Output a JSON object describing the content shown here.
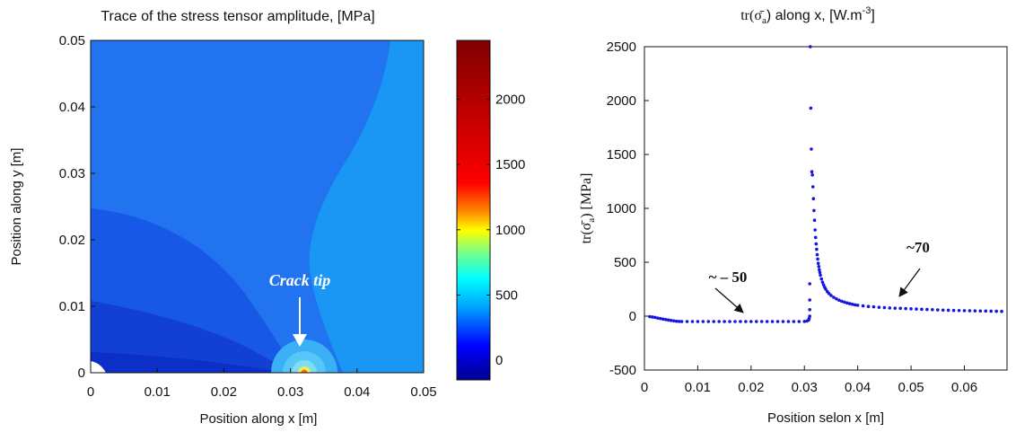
{
  "chart_data": [
    {
      "type": "heatmap",
      "title": "Trace of the stress tensor amplitude, [MPa]",
      "xlabel": "Position along x [m]",
      "ylabel": "Position along y [m]",
      "xlim": [
        0,
        0.05
      ],
      "ylim": [
        0,
        0.05
      ],
      "xticks": [
        "0",
        "0.01",
        "0.02",
        "0.03",
        "0.04",
        "0.05"
      ],
      "yticks": [
        "0",
        "0.01",
        "0.02",
        "0.03",
        "0.04",
        "0.05"
      ],
      "colorbar": {
        "range": [
          -150,
          2450
        ],
        "ticks": [
          "0",
          "500",
          "1000",
          "1500",
          "2000"
        ]
      },
      "annotation": "Crack tip",
      "crack_tip": [
        0.032,
        0.0005
      ]
    },
    {
      "type": "scatter",
      "title": "tr(σ̄a) along x, [W.m-3]",
      "xlabel": "Position selon x [m]",
      "ylabel": "tr(σ̄a) [MPa]",
      "xlim": [
        0,
        0.068
      ],
      "ylim": [
        -500,
        2500
      ],
      "xticks": [
        "0",
        "0.01",
        "0.02",
        "0.03",
        "0.04",
        "0.05",
        "0.06"
      ],
      "yticks": [
        "-500",
        "0",
        "500",
        "1000",
        "1500",
        "2000",
        "2500"
      ],
      "annotations": [
        {
          "text": "~ – 50",
          "target": [
            0.019,
            -50
          ]
        },
        {
          "text": "~70",
          "target": [
            0.048,
            70
          ]
        }
      ],
      "series": [
        {
          "color": "#1515e0",
          "points": [
            [
              0.001,
              -5
            ],
            [
              0.0015,
              -8
            ],
            [
              0.002,
              -12
            ],
            [
              0.0025,
              -18
            ],
            [
              0.003,
              -22
            ],
            [
              0.0035,
              -28
            ],
            [
              0.004,
              -32
            ],
            [
              0.0045,
              -36
            ],
            [
              0.005,
              -40
            ],
            [
              0.0055,
              -44
            ],
            [
              0.006,
              -47
            ],
            [
              0.0065,
              -49
            ],
            [
              0.007,
              -50
            ],
            [
              0.008,
              -50
            ],
            [
              0.009,
              -50
            ],
            [
              0.01,
              -50
            ],
            [
              0.011,
              -50
            ],
            [
              0.012,
              -50
            ],
            [
              0.013,
              -50
            ],
            [
              0.014,
              -50
            ],
            [
              0.015,
              -50
            ],
            [
              0.016,
              -50
            ],
            [
              0.017,
              -50
            ],
            [
              0.018,
              -50
            ],
            [
              0.019,
              -50
            ],
            [
              0.02,
              -50
            ],
            [
              0.021,
              -50
            ],
            [
              0.022,
              -50
            ],
            [
              0.023,
              -50
            ],
            [
              0.024,
              -50
            ],
            [
              0.025,
              -50
            ],
            [
              0.026,
              -50
            ],
            [
              0.027,
              -50
            ],
            [
              0.028,
              -50
            ],
            [
              0.029,
              -50
            ],
            [
              0.03,
              -49
            ],
            [
              0.0305,
              -45
            ],
            [
              0.0308,
              -35
            ],
            [
              0.0309,
              -20
            ],
            [
              0.031,
              0
            ],
            [
              0.031,
              60
            ],
            [
              0.031,
              150
            ],
            [
              0.031,
              300
            ],
            [
              0.0311,
              2500
            ],
            [
              0.0312,
              1930
            ],
            [
              0.0313,
              1550
            ],
            [
              0.0314,
              1340
            ],
            [
              0.0315,
              1310
            ],
            [
              0.0316,
              1200
            ],
            [
              0.0317,
              1090
            ],
            [
              0.0318,
              980
            ],
            [
              0.0319,
              890
            ],
            [
              0.032,
              800
            ],
            [
              0.0321,
              730
            ],
            [
              0.0322,
              670
            ],
            [
              0.0323,
              620
            ],
            [
              0.0324,
              570
            ],
            [
              0.0325,
              530
            ],
            [
              0.0326,
              490
            ],
            [
              0.0327,
              460
            ],
            [
              0.0328,
              430
            ],
            [
              0.0329,
              405
            ],
            [
              0.033,
              380
            ],
            [
              0.0332,
              345
            ],
            [
              0.0334,
              315
            ],
            [
              0.0336,
              290
            ],
            [
              0.0338,
              268
            ],
            [
              0.034,
              250
            ],
            [
              0.0343,
              228
            ],
            [
              0.0346,
              210
            ],
            [
              0.035,
              192
            ],
            [
              0.0355,
              175
            ],
            [
              0.036,
              160
            ],
            [
              0.0365,
              148
            ],
            [
              0.037,
              138
            ],
            [
              0.0375,
              130
            ],
            [
              0.038,
              122
            ],
            [
              0.0385,
              116
            ],
            [
              0.039,
              110
            ],
            [
              0.0395,
              105
            ],
            [
              0.04,
              101
            ],
            [
              0.041,
              95
            ],
            [
              0.042,
              90
            ],
            [
              0.043,
              86
            ],
            [
              0.044,
              82
            ],
            [
              0.045,
              79
            ],
            [
              0.046,
              76
            ],
            [
              0.047,
              74
            ],
            [
              0.048,
              72
            ],
            [
              0.049,
              70
            ],
            [
              0.05,
              68
            ],
            [
              0.051,
              66
            ],
            [
              0.052,
              64
            ],
            [
              0.053,
              62
            ],
            [
              0.054,
              60
            ],
            [
              0.055,
              58
            ],
            [
              0.056,
              56
            ],
            [
              0.057,
              55
            ],
            [
              0.058,
              53
            ],
            [
              0.059,
              52
            ],
            [
              0.06,
              51
            ],
            [
              0.061,
              50
            ],
            [
              0.062,
              49
            ],
            [
              0.063,
              48
            ],
            [
              0.064,
              47
            ],
            [
              0.065,
              46
            ],
            [
              0.066,
              45
            ],
            [
              0.067,
              44
            ]
          ]
        }
      ]
    }
  ]
}
